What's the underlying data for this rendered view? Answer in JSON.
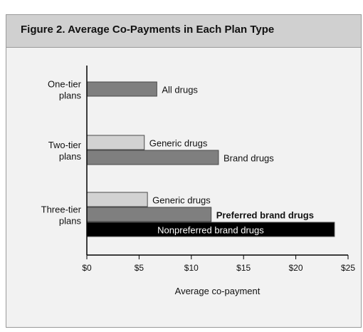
{
  "figure": {
    "title": "Figure 2.  Average Co-Payments in Each Plan Type"
  },
  "colors": {
    "frame_bg": "#f2f2f2",
    "title_bg": "#d0d0d0",
    "generic": "#d2d2d2",
    "brand": "#7f7f7f",
    "nonpreferred": "#000000",
    "axis": "#000000"
  },
  "chart_data": {
    "type": "bar",
    "orientation": "horizontal",
    "title": "Figure 2.  Average Co-Payments in Each Plan Type",
    "xlabel": "Average co-payment",
    "ylabel": "",
    "xlim": [
      0,
      25
    ],
    "xticks": [
      "$0",
      "$5",
      "$10",
      "$15",
      "$20",
      "$25"
    ],
    "xtick_values": [
      0,
      5,
      10,
      15,
      20,
      25
    ],
    "grid": false,
    "legend": "none",
    "groups": [
      {
        "label_lines": [
          "One-tier",
          "plans"
        ],
        "bars": [
          {
            "label": "All drugs",
            "value": 6.7,
            "kind": "brand",
            "label_bold": false
          }
        ]
      },
      {
        "label_lines": [
          "Two-tier",
          "plans"
        ],
        "bars": [
          {
            "label": "Generic drugs",
            "value": 5.5,
            "kind": "generic",
            "label_bold": false
          },
          {
            "label": "Brand drugs",
            "value": 12.6,
            "kind": "brand",
            "label_bold": false
          }
        ]
      },
      {
        "label_lines": [
          "Three-tier",
          "plans"
        ],
        "bars": [
          {
            "label": "Generic drugs",
            "value": 5.8,
            "kind": "generic",
            "label_bold": false
          },
          {
            "label": "Preferred brand drugs",
            "value": 11.9,
            "kind": "brand",
            "label_bold": true
          },
          {
            "label": "Nonpreferred brand drugs",
            "value": 23.7,
            "kind": "nonpreferred",
            "label_bold": false,
            "label_inside": true
          }
        ]
      }
    ]
  }
}
